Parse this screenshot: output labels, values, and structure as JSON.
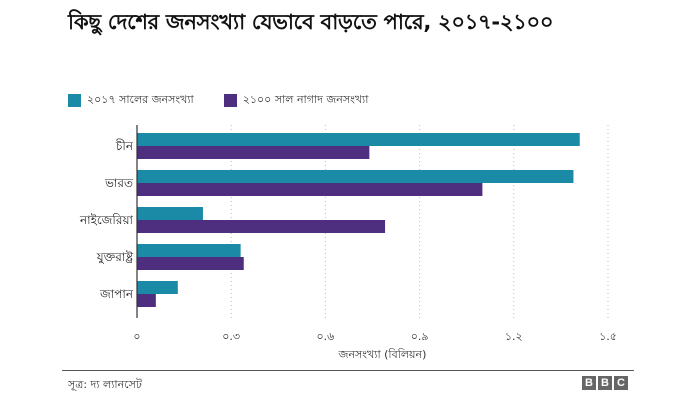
{
  "title": "কিছু দেশের জনসংখ্যা যেভাবে বাড়তে পারে,   ২০১৭-২১০০",
  "source": "সূত্র: দ্য ল্যানসেট",
  "logo": [
    "B",
    "B",
    "C"
  ],
  "colors": {
    "series_2017": "#1a8aa6",
    "series_2100": "#4d2e7f",
    "grid": "#bbbbbb",
    "axis": "#333333"
  },
  "chart_data": {
    "type": "bar",
    "orientation": "horizontal",
    "categories": [
      "চীন",
      "ভারত",
      "নাইজেরিয়া",
      "যুক্তরাষ্ট্র",
      "জাপান"
    ],
    "series": [
      {
        "name": "২০১৭ সালের জনসংখ্যা",
        "values": [
          1.41,
          1.39,
          0.21,
          0.33,
          0.13
        ]
      },
      {
        "name": "২১০০ সাল নাগাদ জনসংখ্যা",
        "values": [
          0.74,
          1.1,
          0.79,
          0.34,
          0.06
        ]
      }
    ],
    "xlabel": "জনসংখ্যা (বিলিয়ন)",
    "xlim": [
      0,
      1.5
    ],
    "xticks": [
      0,
      0.3,
      0.6,
      0.9,
      1.2,
      1.5
    ],
    "xtick_labels": [
      "০",
      "০.৩",
      "০.৬",
      "০.৯",
      "১.২",
      "১.৫"
    ],
    "grid": "vertical",
    "legend_position": "top-left"
  }
}
